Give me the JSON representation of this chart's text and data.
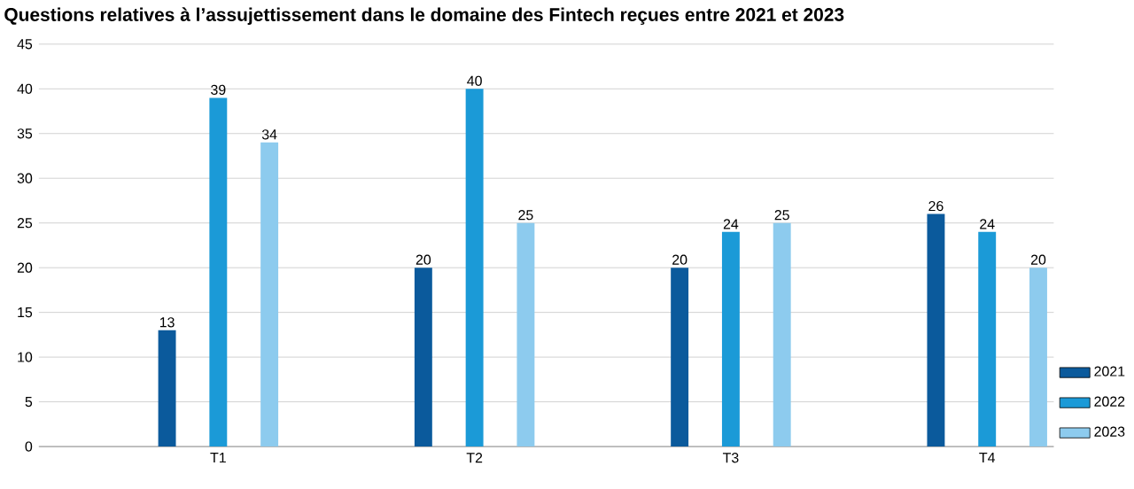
{
  "chart_data": {
    "type": "bar",
    "title": "Questions relatives à l’assujettissement dans le domaine des Fintech reçues entre 2021 et 2023",
    "categories": [
      "T1",
      "T2",
      "T3",
      "T4"
    ],
    "series": [
      {
        "name": "2021",
        "color": "#0b5a9c",
        "values": [
          13,
          20,
          20,
          26
        ]
      },
      {
        "name": "2022",
        "color": "#1b9ad7",
        "values": [
          39,
          40,
          24,
          24
        ]
      },
      {
        "name": "2023",
        "color": "#8dcbee",
        "values": [
          34,
          25,
          25,
          20
        ]
      }
    ],
    "ylim": [
      0,
      45
    ],
    "yticks": [
      0,
      5,
      10,
      15,
      20,
      25,
      30,
      35,
      40,
      45
    ],
    "grid": "y",
    "legend": "bottom right",
    "data_labels": true
  }
}
